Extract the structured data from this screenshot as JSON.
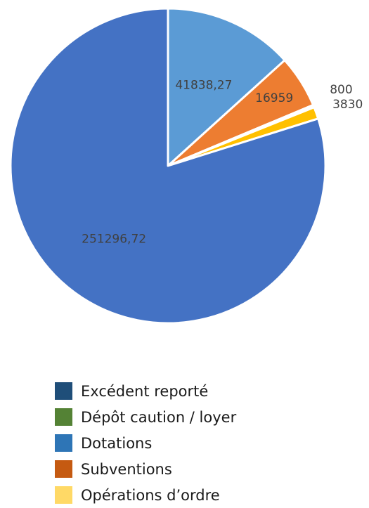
{
  "chart_data": {
    "type": "pie",
    "title": "",
    "slices": [
      {
        "label": "41838,27",
        "value": 41838.27,
        "color": "#5B9BD5"
      },
      {
        "label": "16959",
        "value": 16959,
        "color": "#ED7D31"
      },
      {
        "label": "800",
        "value": 800,
        "color": "#FFFFFF"
      },
      {
        "label": "3830",
        "value": 3830,
        "color": "#FFC000"
      },
      {
        "label": "251296,72",
        "value": 251296.72,
        "color": "#4472C4"
      }
    ],
    "legend": {
      "placement": "bottom",
      "items": [
        {
          "name": "Excédent reporté",
          "color": "#1F4E79"
        },
        {
          "name": "Dépôt caution / loyer",
          "color": "#548235"
        },
        {
          "name": "Dotations",
          "color": "#2E75B6"
        },
        {
          "name": "Subventions",
          "color": "#C55A11"
        },
        {
          "name": "Opérations d’ordre",
          "color": "#FFD966"
        }
      ]
    }
  }
}
